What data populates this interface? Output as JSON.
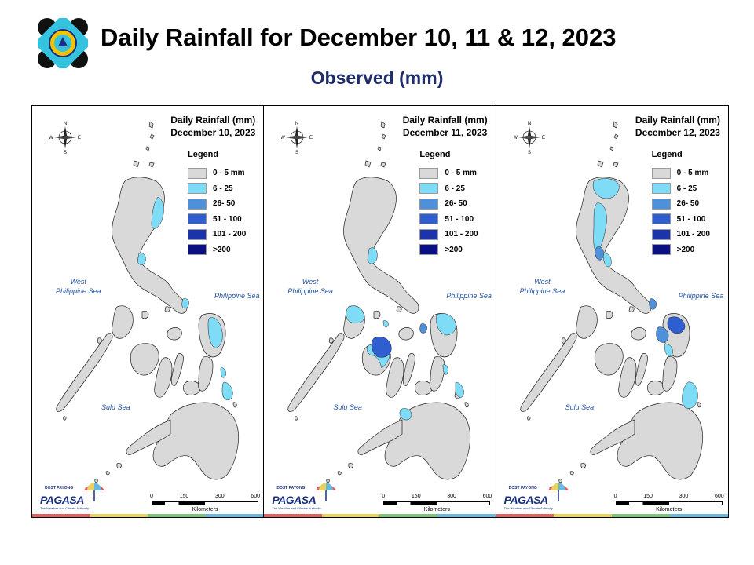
{
  "header": {
    "title": "Daily Rainfall for December 10, 11 & 12, 2023",
    "subtitle": "Observed (mm)"
  },
  "legend": {
    "title": "Legend",
    "items": [
      {
        "label": "0 - 5 mm",
        "color": "#d9d9d9"
      },
      {
        "label": "6 - 25",
        "color": "#7fdcf6"
      },
      {
        "label": "26- 50",
        "color": "#4f90db"
      },
      {
        "label": "51 - 100",
        "color": "#2e5ed0"
      },
      {
        "label": "101 - 200",
        "color": "#1d33a8"
      },
      {
        "label": ">200",
        "color": "#0b0f84"
      }
    ]
  },
  "seas": {
    "west": "West\nPhilippine Sea",
    "east": "Philippine Sea",
    "sulu": "Sulu Sea"
  },
  "compass": {
    "n": "N",
    "s": "S",
    "e": "E",
    "w": "W"
  },
  "scale": {
    "ticks": [
      "0",
      "150",
      "300",
      "600"
    ],
    "unit": "Kilometers"
  },
  "brand": {
    "small": "DOST",
    "small2": "PAYONG",
    "name": "PAGASA",
    "tagline": "The Weather and Climate Authority"
  },
  "strip_colors": [
    "#e06161",
    "#e9d35f",
    "#7cc47a",
    "#68b9e0"
  ],
  "maps": [
    {
      "heading": "Daily Rainfall (mm)",
      "date": "December 10, 2023"
    },
    {
      "heading": "Daily Rainfall (mm)",
      "date": "December 11, 2023"
    },
    {
      "heading": "Daily Rainfall (mm)",
      "date": "December 12, 2023"
    }
  ]
}
